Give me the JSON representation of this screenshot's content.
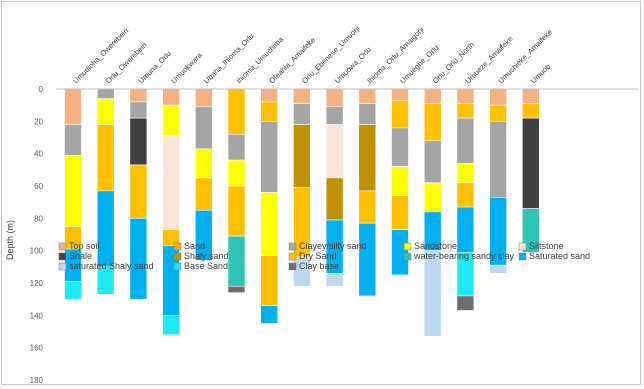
{
  "chart_data": {
    "type": "bar",
    "stacked": true,
    "orientation": "vertical-depth",
    "ylabel": "Depth (m)",
    "ylim": [
      0,
      180
    ],
    "yticks": [
      0,
      20,
      40,
      60,
      80,
      100,
      120,
      140,
      160,
      180
    ],
    "y_inverted": true,
    "grid": "none",
    "legend_position": "bottom-inside",
    "wells": [
      {
        "name": "Umudioha_Owerebeiri",
        "layers": [
          {
            "lith": "Top soil",
            "top": 0,
            "bottom": 22
          },
          {
            "lith": "Clayey/silty sand",
            "top": 22,
            "bottom": 41
          },
          {
            "lith": "Sandstone",
            "top": 41,
            "bottom": 85
          },
          {
            "lith": "Dry Sand",
            "top": 85,
            "bottom": 99
          },
          {
            "lith": "Saturated sand",
            "top": 99,
            "bottom": 119
          },
          {
            "lith": "Base Sand",
            "top": 119,
            "bottom": 130
          }
        ]
      },
      {
        "name": "Orlu_Owerebeiri",
        "layers": [
          {
            "lith": "Clayey/silty sand",
            "top": 0,
            "bottom": 6
          },
          {
            "lith": "Sandstone",
            "top": 6,
            "bottom": 22
          },
          {
            "lith": "Dry Sand",
            "top": 22,
            "bottom": 63
          },
          {
            "lith": "Saturated sand",
            "top": 63,
            "bottom": 110
          },
          {
            "lith": "Base Sand",
            "top": 110,
            "bottom": 127
          }
        ]
      },
      {
        "name": "Umuna_Orlu",
        "layers": [
          {
            "lith": "Top soil",
            "top": 0,
            "bottom": 8
          },
          {
            "lith": "Clayey/silty sand",
            "top": 8,
            "bottom": 18
          },
          {
            "lith": "Shale",
            "top": 18,
            "bottom": 47
          },
          {
            "lith": "Dry Sand",
            "top": 47,
            "bottom": 80
          },
          {
            "lith": "Saturated sand",
            "top": 80,
            "bottom": 130
          }
        ]
      },
      {
        "name": "Umuokwara",
        "layers": [
          {
            "lith": "Top soil",
            "top": 0,
            "bottom": 10
          },
          {
            "lith": "Sandstone",
            "top": 10,
            "bottom": 29
          },
          {
            "lith": "Siltstone",
            "top": 29,
            "bottom": 87
          },
          {
            "lith": "Dry Sand",
            "top": 87,
            "bottom": 97
          },
          {
            "lith": "Saturated sand",
            "top": 97,
            "bottom": 140
          },
          {
            "lith": "Base Sand",
            "top": 140,
            "bottom": 152
          }
        ]
      },
      {
        "name": "Ubaha_Ihioma_Orlu",
        "layers": [
          {
            "lith": "Top soil",
            "top": 0,
            "bottom": 11
          },
          {
            "lith": "Clayey/silty sand",
            "top": 11,
            "bottom": 37
          },
          {
            "lith": "Sandstone",
            "top": 37,
            "bottom": 55
          },
          {
            "lith": "Dry Sand",
            "top": 55,
            "bottom": 75
          },
          {
            "lith": "Saturated sand",
            "top": 75,
            "bottom": 106
          }
        ]
      },
      {
        "name": "Ihioma_Umuchima",
        "layers": [
          {
            "lith": "Dry Sand",
            "top": 0,
            "bottom": 28
          },
          {
            "lith": "Clayey/silty sand",
            "top": 28,
            "bottom": 44
          },
          {
            "lith": "Sandstone",
            "top": 44,
            "bottom": 60
          },
          {
            "lith": "Dry Sand",
            "top": 60,
            "bottom": 91
          },
          {
            "lith": "water-bearing sandy clay",
            "top": 91,
            "bottom": 122
          },
          {
            "lith": "Clay base",
            "top": 122,
            "bottom": 126
          }
        ]
      },
      {
        "name": "Ofeahia_Amaifeke",
        "layers": [
          {
            "lith": "Top soil",
            "top": 0,
            "bottom": 8
          },
          {
            "lith": "Dry Sand",
            "top": 8,
            "bottom": 20
          },
          {
            "lith": "Clayey/silty sand",
            "top": 20,
            "bottom": 64
          },
          {
            "lith": "Sandstone",
            "top": 64,
            "bottom": 103
          },
          {
            "lith": "Dry Sand",
            "top": 103,
            "bottom": 134
          },
          {
            "lith": "Saturated sand",
            "top": 134,
            "bottom": 145
          }
        ]
      },
      {
        "name": "Orlu_Ebenese_Umuorji",
        "layers": [
          {
            "lith": "Top soil",
            "top": 0,
            "bottom": 9
          },
          {
            "lith": "Clayey/silty sand",
            "top": 9,
            "bottom": 22
          },
          {
            "lith": "Shaly sand",
            "top": 22,
            "bottom": 61
          },
          {
            "lith": "Dry Sand",
            "top": 61,
            "bottom": 104
          },
          {
            "lith": "saturated Shaly sand",
            "top": 104,
            "bottom": 122
          }
        ]
      },
      {
        "name": "Umuowa_Orlu",
        "layers": [
          {
            "lith": "Top soil",
            "top": 0,
            "bottom": 11
          },
          {
            "lith": "Clayey/silty sand",
            "top": 11,
            "bottom": 22
          },
          {
            "lith": "Siltstone",
            "top": 22,
            "bottom": 55
          },
          {
            "lith": "Shaly sand",
            "top": 55,
            "bottom": 81
          },
          {
            "lith": "Saturated sand",
            "top": 81,
            "bottom": 114
          },
          {
            "lith": "saturated Shaly sand",
            "top": 114,
            "bottom": 122
          }
        ]
      },
      {
        "name": "Ihioma_Orlu_Amaigorji",
        "layers": [
          {
            "lith": "Top soil",
            "top": 0,
            "bottom": 9
          },
          {
            "lith": "Clayey/silty sand",
            "top": 9,
            "bottom": 22
          },
          {
            "lith": "Shaly sand",
            "top": 22,
            "bottom": 63
          },
          {
            "lith": "Dry Sand",
            "top": 63,
            "bottom": 83
          },
          {
            "lith": "Saturated sand",
            "top": 83,
            "bottom": 128
          }
        ]
      },
      {
        "name": "Umueghe_Orlu",
        "layers": [
          {
            "lith": "Top soil",
            "top": 0,
            "bottom": 7
          },
          {
            "lith": "Dry Sand",
            "top": 7,
            "bottom": 24
          },
          {
            "lith": "Clayey/silty sand",
            "top": 24,
            "bottom": 48
          },
          {
            "lith": "Sandstone",
            "top": 48,
            "bottom": 66
          },
          {
            "lith": "Dry Sand",
            "top": 66,
            "bottom": 87
          },
          {
            "lith": "Saturated sand",
            "top": 87,
            "bottom": 115
          }
        ]
      },
      {
        "name": "Orlu_Orlu_North",
        "layers": [
          {
            "lith": "Top soil",
            "top": 0,
            "bottom": 9
          },
          {
            "lith": "Dry Sand",
            "top": 9,
            "bottom": 32
          },
          {
            "lith": "Clayey/silty sand",
            "top": 32,
            "bottom": 58
          },
          {
            "lith": "Sandstone",
            "top": 58,
            "bottom": 76
          },
          {
            "lith": "Saturated sand",
            "top": 76,
            "bottom": 100
          },
          {
            "lith": "saturated Shaly sand",
            "top": 100,
            "bottom": 153
          }
        ]
      },
      {
        "name": "Umueze_Amaifeke",
        "layers": [
          {
            "lith": "Top soil",
            "top": 0,
            "bottom": 9
          },
          {
            "lith": "Dry Sand",
            "top": 9,
            "bottom": 18
          },
          {
            "lith": "Clayey/silty sand",
            "top": 18,
            "bottom": 46
          },
          {
            "lith": "Sandstone",
            "top": 46,
            "bottom": 58
          },
          {
            "lith": "Dry Sand",
            "top": 58,
            "bottom": 73
          },
          {
            "lith": "Saturated sand",
            "top": 73,
            "bottom": 101
          },
          {
            "lith": "Base Sand",
            "top": 101,
            "bottom": 128
          },
          {
            "lith": "Clay base",
            "top": 128,
            "bottom": 137
          }
        ]
      },
      {
        "name": "Umuchieke_Amaifeke",
        "layers": [
          {
            "lith": "Top soil",
            "top": 0,
            "bottom": 10
          },
          {
            "lith": "Dry Sand",
            "top": 10,
            "bottom": 20
          },
          {
            "lith": "Clayey/silty sand",
            "top": 20,
            "bottom": 67
          },
          {
            "lith": "Saturated sand",
            "top": 67,
            "bottom": 109
          },
          {
            "lith": "saturated Shaly sand",
            "top": 109,
            "bottom": 114
          }
        ]
      },
      {
        "name": "Umuob",
        "layers": [
          {
            "lith": "Top soil",
            "top": 0,
            "bottom": 9
          },
          {
            "lith": "Dry Sand",
            "top": 9,
            "bottom": 18
          },
          {
            "lith": "Shale",
            "top": 18,
            "bottom": 74
          },
          {
            "lith": "water-bearing sandy clay",
            "top": 74,
            "bottom": 101
          }
        ]
      }
    ],
    "legend": [
      {
        "name": "Top soil",
        "color": "#f4b183"
      },
      {
        "name": "Sand",
        "color": "#f5a623"
      },
      {
        "name": "Clayey/silty sand",
        "color": "#a5a5a5"
      },
      {
        "name": "Sandstone",
        "color": "#ffff00"
      },
      {
        "name": "Siltstone",
        "color": "#fbe5d6"
      },
      {
        "name": "Shale",
        "color": "#404040"
      },
      {
        "name": "Shaly sand",
        "color": "#bf9000"
      },
      {
        "name": "Dry Sand",
        "color": "#ffc000"
      },
      {
        "name": "water-bearing sandy clay",
        "color": "#2ec4b6"
      },
      {
        "name": "Saturated sand",
        "color": "#00b0f0"
      },
      {
        "name": "saturated Shaly sand",
        "color": "#bdd7ee"
      },
      {
        "name": "Base Sand",
        "color": "#1de9f2"
      },
      {
        "name": "Clay base",
        "color": "#6d6d6d"
      }
    ]
  }
}
